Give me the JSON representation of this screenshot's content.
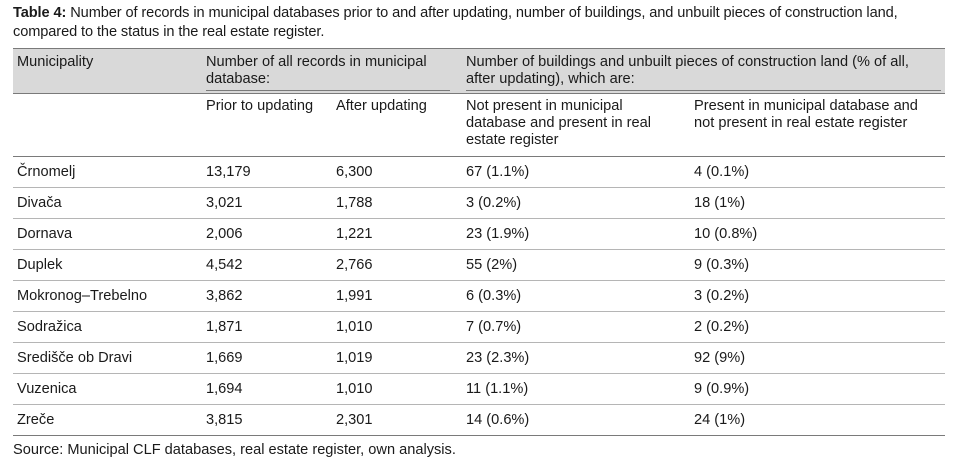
{
  "caption": {
    "label": "Table 4:",
    "text": "Number of records in municipal databases prior to and after updating, number of buildings, and unbuilt pieces of construction land, compared to the status in the real estate register."
  },
  "header": {
    "municipality": "Municipality",
    "group1": "Number of all records in municipal database:",
    "group2": "Number of buildings and unbuilt pieces of construction land (% of all, after updating), which are:",
    "prior": "Prior to updating",
    "after": "After updating",
    "not_present": "Not present in municipal database and present in real estate register",
    "present": "Present in municipal database and not present in real estate register"
  },
  "rows": [
    {
      "municipality": "Črnomelj",
      "prior": "13,179",
      "after": "6,300",
      "not_present": "67 (1.1%)",
      "present": "4 (0.1%)"
    },
    {
      "municipality": "Divača",
      "prior": "3,021",
      "after": "1,788",
      "not_present": "3 (0.2%)",
      "present": "18 (1%)"
    },
    {
      "municipality": "Dornava",
      "prior": "2,006",
      "after": "1,221",
      "not_present": "23 (1.9%)",
      "present": "10 (0.8%)"
    },
    {
      "municipality": "Duplek",
      "prior": "4,542",
      "after": "2,766",
      "not_present": "55 (2%)",
      "present": "9 (0.3%)"
    },
    {
      "municipality": "Mokronog–Trebelno",
      "prior": "3,862",
      "after": "1,991",
      "not_present": "6 (0.3%)",
      "present": "3 (0.2%)"
    },
    {
      "municipality": "Sodražica",
      "prior": "1,871",
      "after": "1,010",
      "not_present": "7 (0.7%)",
      "present": "2 (0.2%)"
    },
    {
      "municipality": "Središče ob Dravi",
      "prior": "1,669",
      "after": "1,019",
      "not_present": "23 (2.3%)",
      "present": "92 (9%)"
    },
    {
      "municipality": "Vuzenica",
      "prior": "1,694",
      "after": "1,010",
      "not_present": "11 (1.1%)",
      "present": "9 (0.9%)"
    },
    {
      "municipality": "Zreče",
      "prior": "3,815",
      "after": "2,301",
      "not_present": "14 (0.6%)",
      "present": "24 (1%)"
    }
  ],
  "source": "Source: Municipal CLF databases, real estate register, own analysis."
}
